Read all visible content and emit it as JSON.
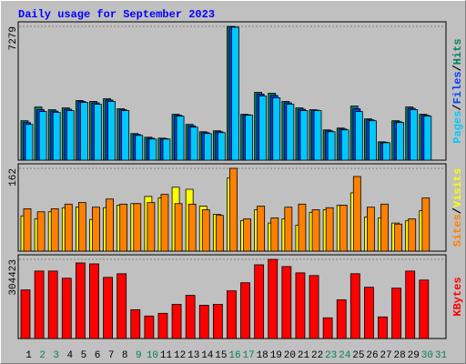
{
  "chart_data": [
    {
      "type": "bar",
      "title": "Daily usage for September 2023",
      "legend_separator": "/",
      "ylim": [
        0,
        7279
      ],
      "yticks": [
        7279
      ],
      "series": [
        {
          "name": "Pages",
          "color": "#00c8ff",
          "values": [
            1945,
            2645,
            2595,
            2695,
            3144,
            3044,
            3194,
            2695,
            1347,
            1148,
            1148,
            2395,
            1796,
            1447,
            1497,
            7235,
            2445,
            3493,
            3393,
            3044,
            2695,
            2695,
            1547,
            1647,
            2645,
            2145,
            948,
            2046,
            2744,
            2395,
            null
          ]
        },
        {
          "name": "Files",
          "color": "#0040ff",
          "values": [
            2045,
            2745,
            2670,
            2770,
            3194,
            3120,
            3270,
            2745,
            1397,
            1198,
            1173,
            2445,
            1870,
            1497,
            1547,
            7257,
            2470,
            3593,
            3518,
            3120,
            2770,
            2720,
            1597,
            1697,
            2795,
            2195,
            973,
            2095,
            2820,
            2445,
            null
          ]
        },
        {
          "name": "Hits",
          "color": "#00805c",
          "values": [
            2145,
            2894,
            2744,
            2844,
            3243,
            3194,
            3343,
            2794,
            1447,
            1248,
            1198,
            2495,
            1946,
            1547,
            1597,
            7279,
            2495,
            3693,
            3643,
            3194,
            2844,
            2744,
            1647,
            1747,
            2944,
            2245,
            998,
            2145,
            2894,
            2495,
            null
          ]
        }
      ]
    },
    {
      "type": "bar",
      "legend_separator": "/",
      "ylim": [
        0,
        162
      ],
      "yticks": [
        162
      ],
      "series": [
        {
          "name": "Sites",
          "color": "#ff8000",
          "values": [
            83,
            77,
            83,
            92,
            95,
            86,
            102,
            92,
            93,
            95,
            111,
            93,
            92,
            81,
            70,
            162,
            63,
            88,
            65,
            86,
            92,
            81,
            85,
            90,
            146,
            86,
            92,
            53,
            63,
            104,
            null
          ]
        },
        {
          "name": "Visits",
          "color": "#ffff00",
          "values": [
            69,
            63,
            77,
            85,
            86,
            62,
            85,
            90,
            93,
            107,
            104,
            125,
            121,
            88,
            72,
            143,
            60,
            81,
            55,
            63,
            51,
            76,
            81,
            90,
            114,
            67,
            65,
            55,
            60,
            79,
            null
          ]
        }
      ]
    },
    {
      "type": "bar",
      "ylim": [
        0,
        304423
      ],
      "yticks": [
        304423
      ],
      "series": [
        {
          "name": "KBytes",
          "color": "#ff0000",
          "values": [
            186800,
            259400,
            259400,
            231800,
            290600,
            287100,
            235200,
            249100,
            110700,
            86500,
            96900,
            131400,
            166000,
            128000,
            131400,
            183300,
            214500,
            283600,
            304423,
            276700,
            252500,
            242100,
            79600,
            148700,
            249100,
            197200,
            83000,
            193700,
            259400,
            224800,
            null
          ]
        }
      ],
      "categories": [
        "1",
        "2",
        "3",
        "4",
        "5",
        "6",
        "7",
        "8",
        "9",
        "10",
        "11",
        "12",
        "13",
        "14",
        "15",
        "16",
        "17",
        "18",
        "19",
        "20",
        "21",
        "22",
        "23",
        "24",
        "25",
        "26",
        "27",
        "28",
        "29",
        "30",
        "31"
      ],
      "category_colors": [
        "#000000",
        "#00805c",
        "#00805c",
        "#000000",
        "#000000",
        "#000000",
        "#000000",
        "#000000",
        "#00805c",
        "#00805c",
        "#000000",
        "#000000",
        "#000000",
        "#000000",
        "#000000",
        "#00805c",
        "#00805c",
        "#000000",
        "#000000",
        "#000000",
        "#000000",
        "#000000",
        "#00805c",
        "#00805c",
        "#000000",
        "#000000",
        "#000000",
        "#000000",
        "#000000",
        "#00805c",
        "#00805c"
      ]
    }
  ]
}
